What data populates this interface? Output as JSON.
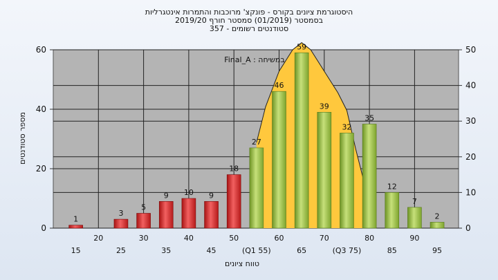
{
  "header": {
    "title_line1": "היסטוגרמת ציונים בקורס - פונקצ' מרוכבות והתמרות אינטגרליות",
    "title_line2": "בסמסטר  (01/2019)  סמסטר חורף 2019/20",
    "title_line3": "סטודנטים רשומים - 357"
  },
  "colors": {
    "fail_bar": "#d92e2e",
    "pass_bar": "#8fb83a",
    "curve_fill": "#ffc83d",
    "plot_bg": "#b4b4b4"
  },
  "chart_data": {
    "type": "bar",
    "xlabel": "טווח ציונים",
    "ylabel": "מספר סטודנטים",
    "annotation": "Final_A : במשיחה",
    "y_left_lim": [
      0,
      60
    ],
    "y_left_ticks": [
      "0",
      "20",
      "40",
      "60"
    ],
    "y_right_lim": [
      0,
      50
    ],
    "y_right_ticks": [
      "0",
      "10",
      "20",
      "30",
      "40",
      "50"
    ],
    "x_tick_labels_top": [
      "20",
      "30",
      "40",
      "50",
      "60",
      "70",
      "80",
      "90"
    ],
    "x_tick_labels_bottom": [
      "15",
      "25",
      "35",
      "45",
      "(Q1 55)",
      "65",
      "(Q3 75)",
      "85",
      "95"
    ],
    "grid": true,
    "bars": [
      {
        "center": 15,
        "value": 1,
        "color": "red"
      },
      {
        "center": 25,
        "value": 3,
        "color": "red"
      },
      {
        "center": 30,
        "value": 5,
        "color": "red"
      },
      {
        "center": 35,
        "value": 9,
        "color": "red"
      },
      {
        "center": 40,
        "value": 10,
        "color": "red"
      },
      {
        "center": 45,
        "value": 9,
        "color": "red"
      },
      {
        "center": 50,
        "value": 18,
        "color": "red"
      },
      {
        "center": 55,
        "value": 27,
        "color": "green"
      },
      {
        "center": 60,
        "value": 46,
        "color": "green"
      },
      {
        "center": 65,
        "value": 59,
        "color": "green"
      },
      {
        "center": 70,
        "value": 39,
        "color": "green"
      },
      {
        "center": 75,
        "value": 32,
        "color": "green"
      },
      {
        "center": 80,
        "value": 35,
        "color": "green"
      },
      {
        "center": 85,
        "value": 12,
        "color": "green"
      },
      {
        "center": 90,
        "value": 7,
        "color": "green"
      },
      {
        "center": 95,
        "value": 2,
        "color": "green"
      }
    ],
    "curve_points": [
      [
        55,
        24
      ],
      [
        57,
        34
      ],
      [
        60,
        44
      ],
      [
        63,
        50
      ],
      [
        65,
        52
      ],
      [
        67,
        50
      ],
      [
        70,
        44
      ],
      [
        73,
        38
      ],
      [
        75,
        33
      ],
      [
        77,
        22
      ],
      [
        79,
        12
      ]
    ],
    "curve_points_right_axis": true
  }
}
